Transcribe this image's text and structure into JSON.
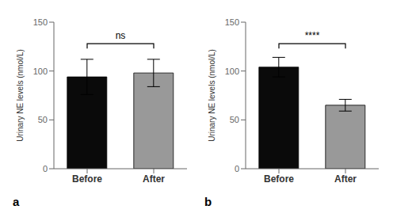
{
  "chart_data": [
    {
      "type": "bar",
      "panel_label": "a",
      "categories": [
        "Before",
        "After"
      ],
      "values": [
        94,
        98
      ],
      "errors": [
        18,
        14
      ],
      "colors": [
        "#0a0a0a",
        "#999999"
      ],
      "y_label": "Urinary NE levels (nmol/L)",
      "ylim": [
        0,
        150
      ],
      "yticks": [
        0,
        50,
        100,
        150
      ],
      "grid": false,
      "annotations": [
        {
          "text": "ns",
          "y": 131,
          "bracket_y": 128
        }
      ]
    },
    {
      "type": "bar",
      "panel_label": "b",
      "categories": [
        "Before",
        "After"
      ],
      "values": [
        104,
        65
      ],
      "errors": [
        10,
        6
      ],
      "colors": [
        "#0a0a0a",
        "#999999"
      ],
      "y_label": "Urinary NE levels (nmol/L)",
      "ylim": [
        0,
        150
      ],
      "yticks": [
        0,
        50,
        100,
        150
      ],
      "grid": false,
      "annotations": [
        {
          "text": "****",
          "y": 131,
          "bracket_y": 128
        }
      ]
    }
  ]
}
